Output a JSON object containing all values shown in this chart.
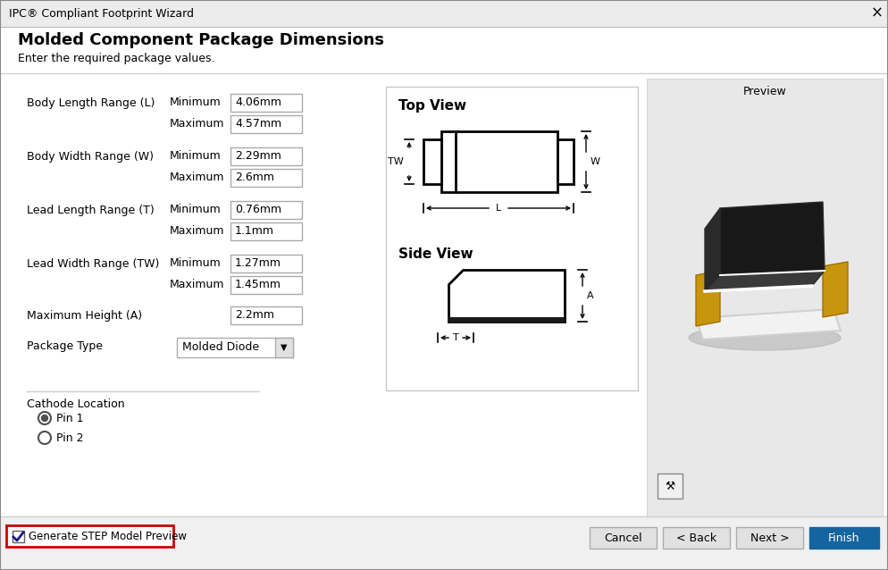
{
  "title_bar": "IPC® Compliant Footprint Wizard",
  "close_x": "×",
  "dialog_title": "Molded Component Package Dimensions",
  "dialog_subtitle": "Enter the required package values.",
  "fields": [
    {
      "label": "Body Length Range (L)",
      "min_label": "Minimum",
      "min_val": "4.06mm",
      "max_label": "Maximum",
      "max_val": "4.57mm"
    },
    {
      "label": "Body Width Range (W)",
      "min_label": "Minimum",
      "min_val": "2.29mm",
      "max_label": "Maximum",
      "max_val": "2.6mm"
    },
    {
      "label": "Lead Length Range (T)",
      "min_label": "Minimum",
      "min_val": "0.76mm",
      "max_label": "Maximum",
      "max_val": "1.1mm"
    },
    {
      "label": "Lead Width Range (TW)",
      "min_label": "Minimum",
      "min_val": "1.27mm",
      "max_label": "Maximum",
      "max_val": "1.45mm"
    }
  ],
  "max_height_label": "Maximum Height (A)",
  "max_height_val": "2.2mm",
  "package_type_label": "Package Type",
  "package_type_val": "Molded Diode",
  "cathode_label": "Cathode Location",
  "radio_pin1": "Pin 1",
  "radio_pin2": "Pin 2",
  "preview_label": "Preview",
  "top_view_label": "Top View",
  "side_view_label": "Side View",
  "generate_step_label": "Generate STEP Model Preview",
  "btn_cancel": "Cancel",
  "btn_back": "< Back",
  "btn_next": "Next >",
  "btn_finish": "Finish",
  "bg_color": "#f0f0f0",
  "titlebar_color": "#ececec",
  "white": "#ffffff",
  "input_border": "#aaaaaa",
  "text_color": "#000000",
  "finish_btn_bg": "#1464a0",
  "finish_btn_fg": "#ffffff",
  "checkbox_red": "#cc0000",
  "separator_color": "#d0d0d0",
  "preview_bg": "#e8e8e8"
}
